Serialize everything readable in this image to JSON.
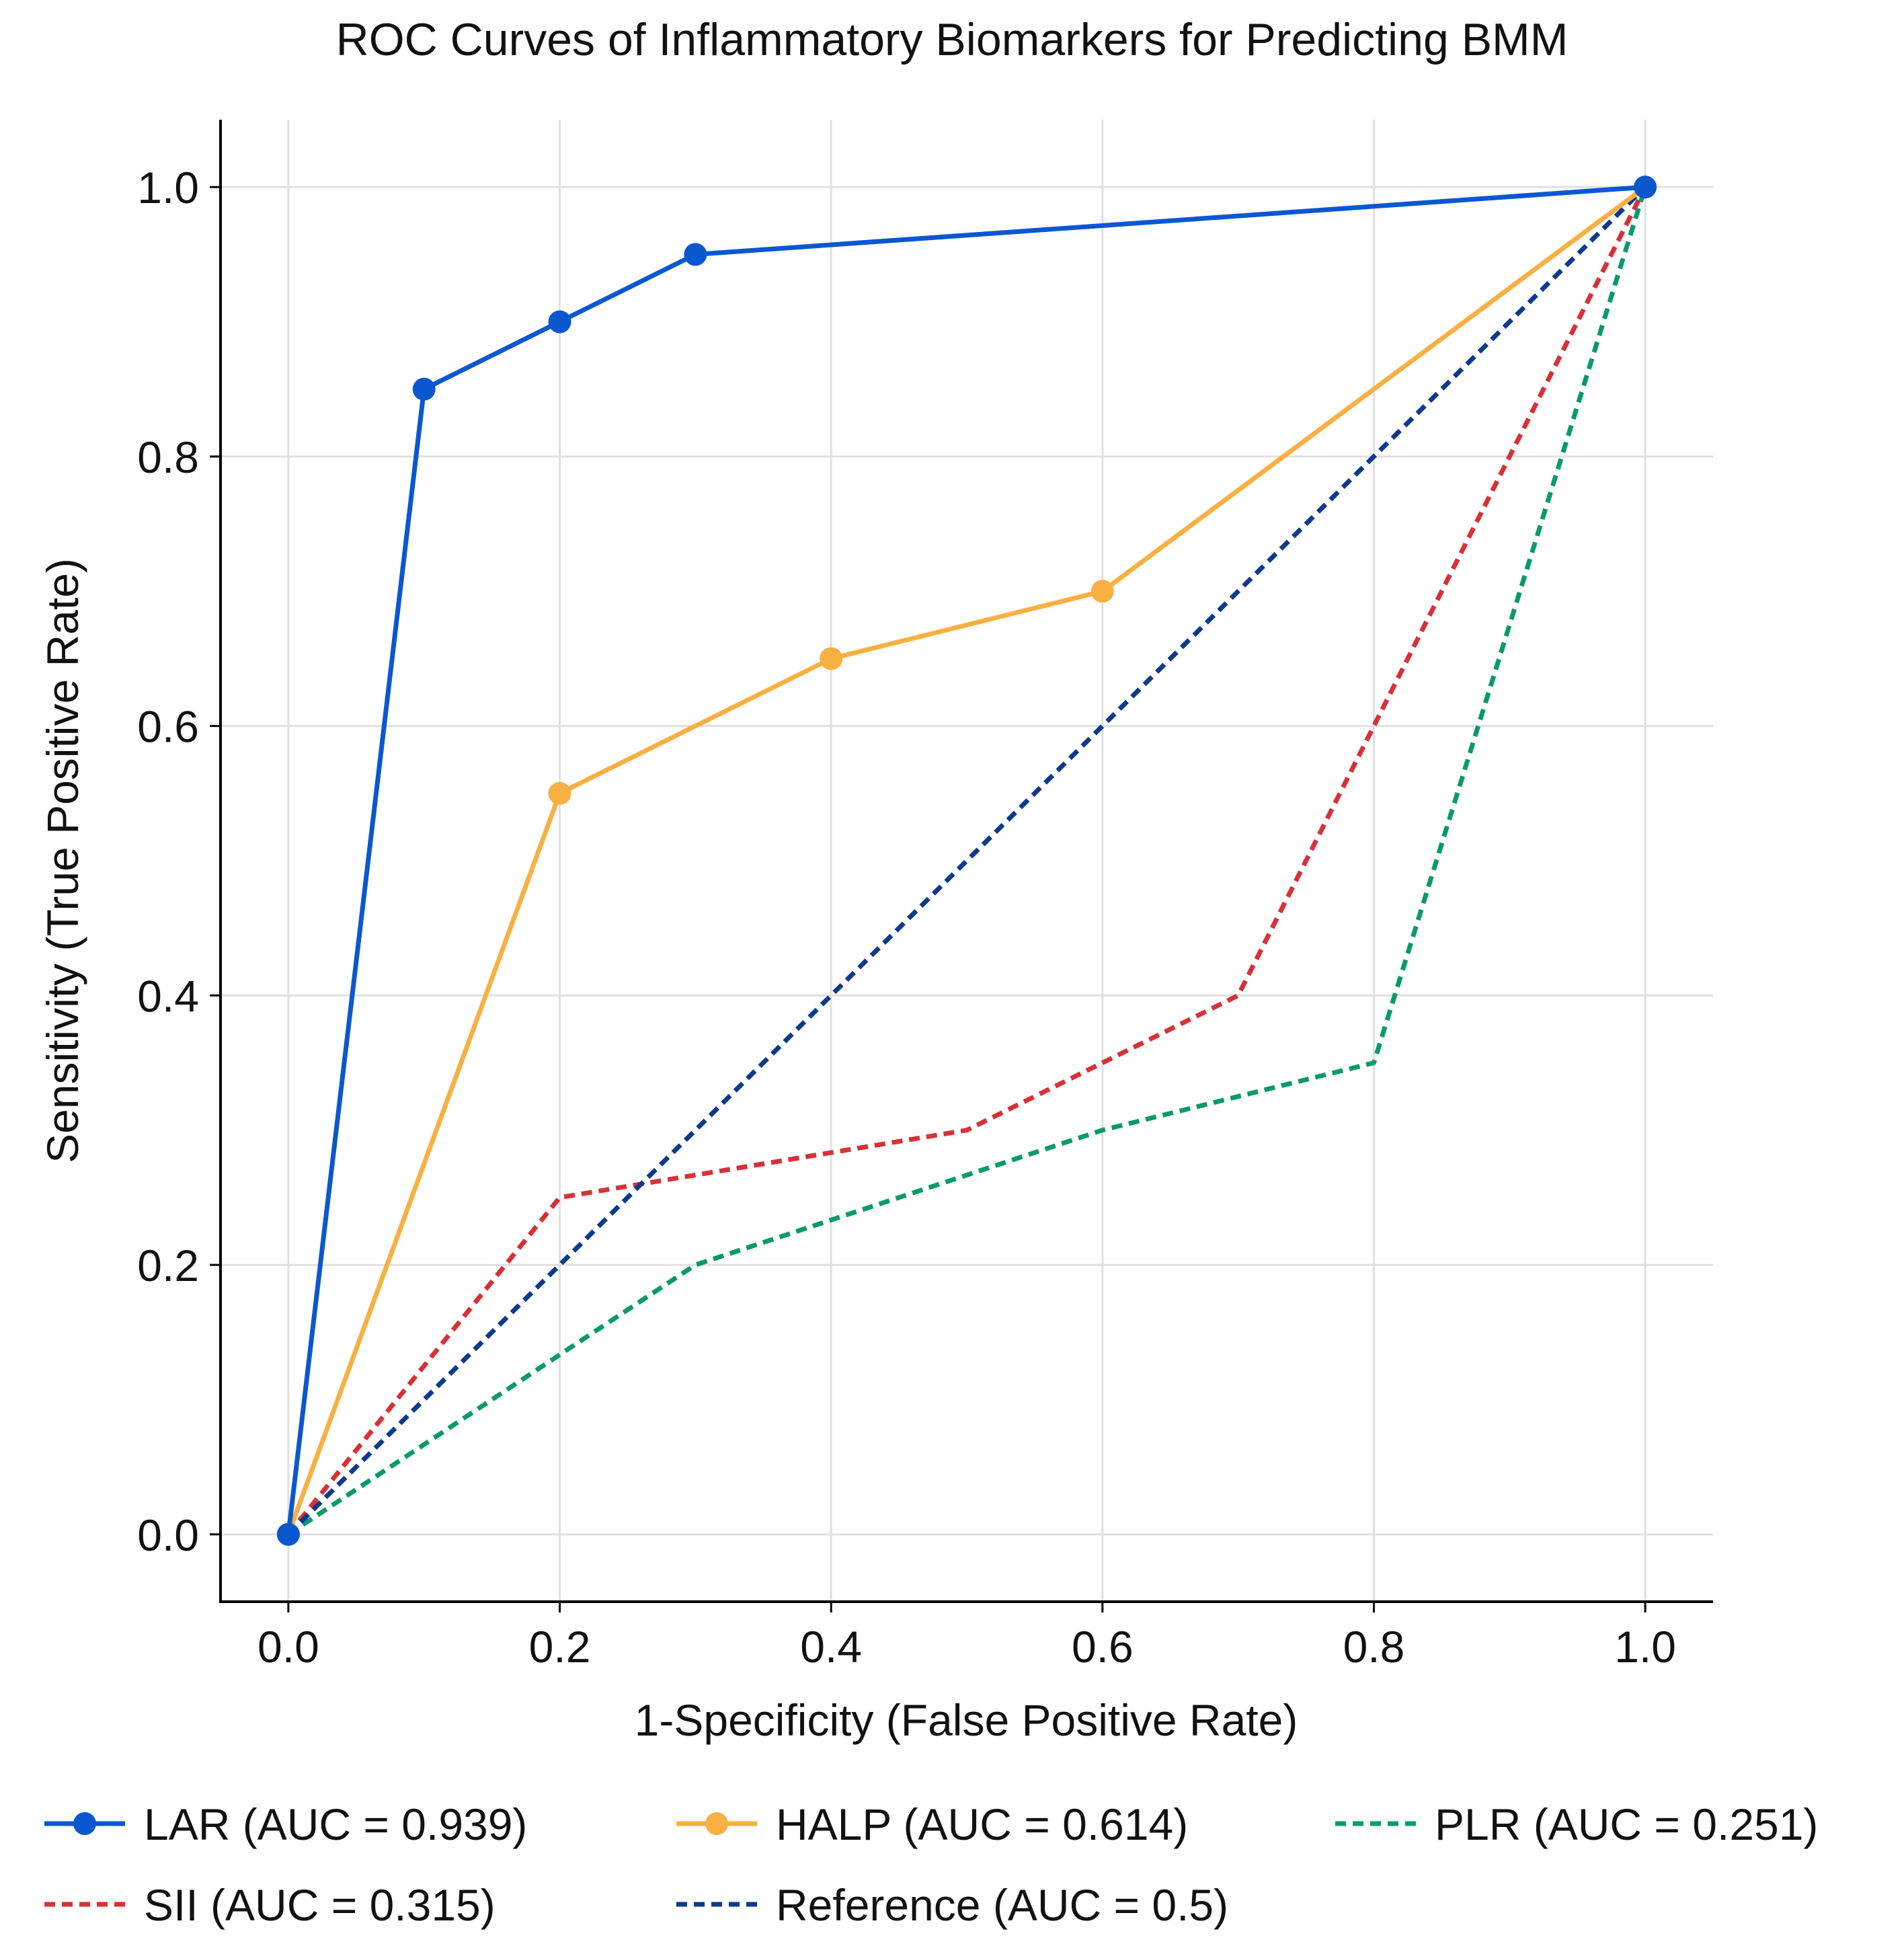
{
  "chart_data": {
    "type": "line",
    "title": "ROC Curves of Inflammatory Biomarkers for Predicting BMM",
    "xlabel": "1-Specificity (False Positive Rate)",
    "ylabel": "Sensitivity (True Positive Rate)",
    "xlim": [
      -0.05,
      1.05
    ],
    "ylim": [
      -0.05,
      1.05
    ],
    "xticks": [
      0.0,
      0.2,
      0.4,
      0.6,
      0.8,
      1.0
    ],
    "yticks": [
      0.0,
      0.2,
      0.4,
      0.6,
      0.8,
      1.0
    ],
    "xtick_labels": [
      "0.0",
      "0.2",
      "0.4",
      "0.6",
      "0.8",
      "1.0"
    ],
    "ytick_labels": [
      "0.0",
      "0.2",
      "0.4",
      "0.6",
      "0.8",
      "1.0"
    ],
    "grid": true,
    "legend_position": "bottom",
    "series": [
      {
        "key": "lar",
        "name": "LAR (AUC = 0.939)",
        "color": "#0b57d0",
        "style": "solid",
        "markers": true,
        "x": [
          0.0,
          0.1,
          0.2,
          0.3,
          1.0
        ],
        "y": [
          0.0,
          0.85,
          0.9,
          0.95,
          1.0
        ]
      },
      {
        "key": "halp",
        "name": "HALP (AUC = 0.614)",
        "color": "#f9b042",
        "style": "solid",
        "markers": true,
        "x": [
          0.0,
          0.2,
          0.4,
          0.6,
          1.0
        ],
        "y": [
          0.0,
          0.55,
          0.65,
          0.7,
          1.0
        ]
      },
      {
        "key": "plr",
        "name": "PLR (AUC = 0.251)",
        "color": "#0a9a6a",
        "style": "dashed",
        "markers": false,
        "x": [
          0.0,
          0.3,
          0.6,
          0.8,
          1.0
        ],
        "y": [
          0.0,
          0.2,
          0.3,
          0.35,
          1.0
        ]
      },
      {
        "key": "sii",
        "name": "SII (AUC = 0.315)",
        "color": "#d93036",
        "style": "dashed",
        "markers": false,
        "x": [
          0.0,
          0.2,
          0.5,
          0.7,
          0.8,
          1.0
        ],
        "y": [
          0.0,
          0.25,
          0.3,
          0.4,
          0.6,
          1.0
        ]
      },
      {
        "key": "reference",
        "name": "Reference (AUC = 0.5)",
        "color": "#0d3a8c",
        "style": "dashed",
        "markers": false,
        "x": [
          0.0,
          1.0
        ],
        "y": [
          0.0,
          1.0
        ]
      }
    ]
  }
}
